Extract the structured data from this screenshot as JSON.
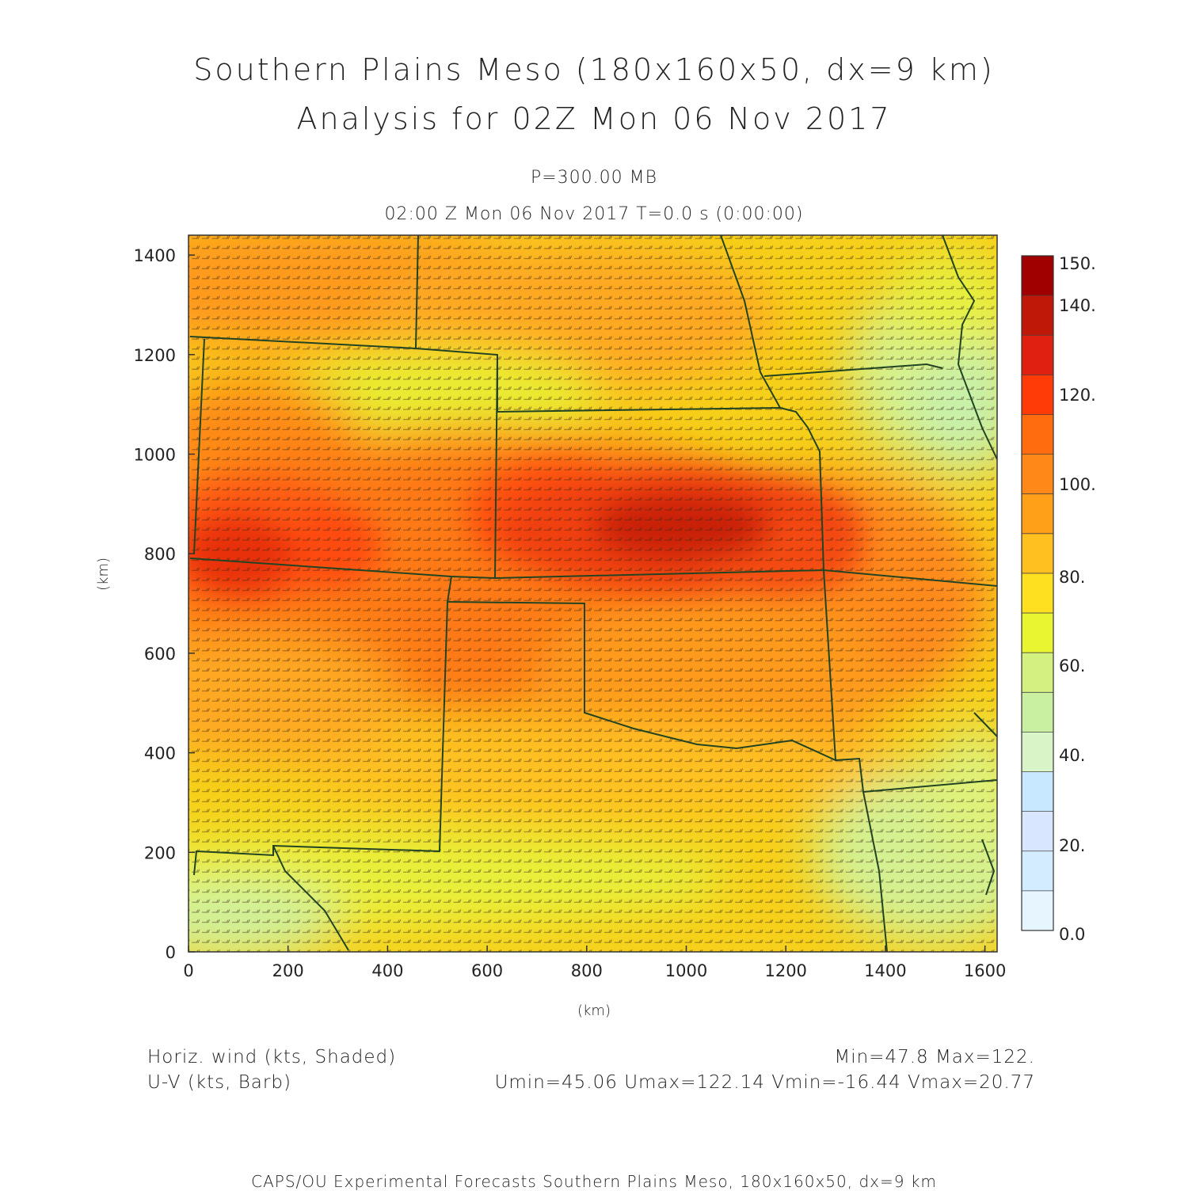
{
  "title": {
    "line1": "Southern Plains Meso (180x160x50, dx=9 km)",
    "line2": "Analysis for 02Z Mon 06 Nov 2017"
  },
  "subtitle": {
    "level": "P=300.00 MB",
    "time": "02:00 Z Mon 06 Nov 2017    T=0.0 s (0:00:00)"
  },
  "axes": {
    "xlabel": "(km)",
    "ylabel": "(km)",
    "xticks": [
      "0",
      "200",
      "400",
      "600",
      "800",
      "1000",
      "1200",
      "1400",
      "1600"
    ],
    "yticks": [
      "0",
      "200",
      "400",
      "600",
      "800",
      "1000",
      "1200",
      "1400"
    ]
  },
  "colorbar": {
    "labels": [
      "150.",
      "140.",
      "120.",
      "100.",
      "80.",
      "60.",
      "40.",
      "20.",
      "0.0"
    ],
    "colors": [
      "#e6f5ff",
      "#d4ecff",
      "#d9e6ff",
      "#c8e8ff",
      "#d9f5c8",
      "#c8f0a0",
      "#d4f080",
      "#e8f530",
      "#ffe020",
      "#ffc020",
      "#ffa018",
      "#ff8818",
      "#ff6c10",
      "#ff3c08",
      "#e02010",
      "#c01808",
      "#a00000"
    ]
  },
  "legend": {
    "line1": "Horiz. wind (kts, Shaded)",
    "line2": "U-V (kts, Barb)",
    "minmax": "Min=47.8 Max=122.",
    "uvstats": "Umin=45.06 Umax=122.14 Vmin=-16.44 Vmax=20.77"
  },
  "footer": "CAPS/OU Experimental Forecasts  Southern Plains Meso, 180x160x50, dx=9 km",
  "chart_data": {
    "type": "heatmap",
    "title": "Southern Plains Meso (180x160x50, dx=9 km)",
    "xlabel": "(km)",
    "ylabel": "(km)",
    "xlim": [
      0,
      1630
    ],
    "ylim": [
      0,
      1440
    ],
    "variable": "Horiz. wind (kts)",
    "colorbar_range": [
      0,
      150
    ],
    "min": 47.8,
    "max": 122,
    "jet_maxima": [
      {
        "x": 900,
        "y": 850,
        "value": 122
      },
      {
        "x": 150,
        "y": 800,
        "value": 115
      },
      {
        "x": 300,
        "y": 830,
        "value": 112
      }
    ]
  }
}
